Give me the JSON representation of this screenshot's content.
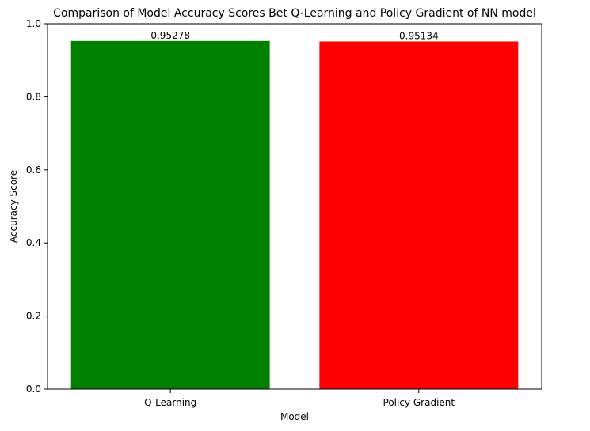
{
  "chart_data": {
    "type": "bar",
    "title": "Comparison of Model Accuracy Scores Bet Q-Learning and Policy Gradient of NN model",
    "xlabel": "Model",
    "ylabel": "Accuracy Score",
    "categories": [
      "Q-Learning",
      "Policy Gradient"
    ],
    "values": [
      0.95278,
      0.95134
    ],
    "data_labels": [
      "0.95278",
      "0.95134"
    ],
    "colors": [
      "#008000",
      "#ff0000"
    ],
    "ylim": [
      0,
      1
    ],
    "yticks": [
      0.0,
      0.2,
      0.4,
      0.6,
      0.8,
      1.0
    ],
    "ytick_labels": [
      "0.0",
      "0.2",
      "0.4",
      "0.6",
      "0.8",
      "1.0"
    ],
    "grid": false,
    "legend": "none"
  }
}
